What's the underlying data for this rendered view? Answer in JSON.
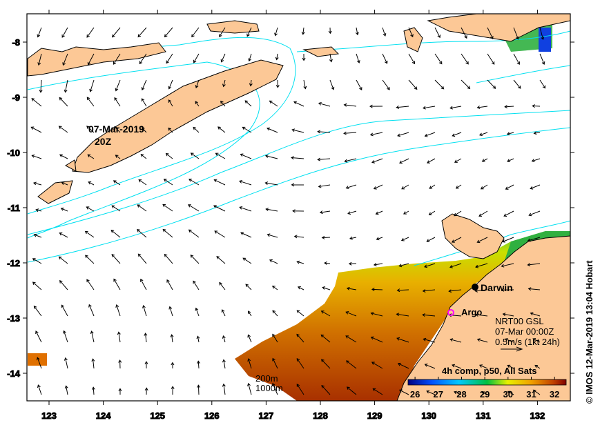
{
  "map": {
    "x_ticks": [
      "123",
      "124",
      "125",
      "126",
      "127",
      "128",
      "129",
      "130",
      "131",
      "132"
    ],
    "y_ticks": [
      "-8",
      "-9",
      "-10",
      "-11",
      "-12",
      "-13",
      "-14"
    ],
    "lon_range": [
      122.6,
      132.6
    ],
    "lat_range": [
      -7.5,
      -14.5
    ],
    "date_label": "07-Mar-2019",
    "time_label": "20Z",
    "city_label": "Darwin",
    "argo_label": "Argo",
    "current_source": "NRT00 GSL",
    "current_time": "07-Mar 00:00Z",
    "scale_label": "0.5m/s (1kt 24h)",
    "contour_200": "200m",
    "contour_1000": "1000m",
    "credit": "© IMOS 12-Mar-2019 13:04 Hobart"
  },
  "colorbar": {
    "title": "4h comp, p50, All Sats",
    "ticks": [
      "26",
      "27",
      "28",
      "29",
      "30",
      "31",
      "32"
    ],
    "range": [
      25.7,
      32.5
    ],
    "colors": [
      "#000080",
      "#0050ff",
      "#00c8ff",
      "#00c040",
      "#e8f000",
      "#f0a000",
      "#c04000",
      "#800000"
    ]
  },
  "colors": {
    "land": "#fcc896",
    "contour": "#00e0f0",
    "argo": "#ff00ff"
  }
}
